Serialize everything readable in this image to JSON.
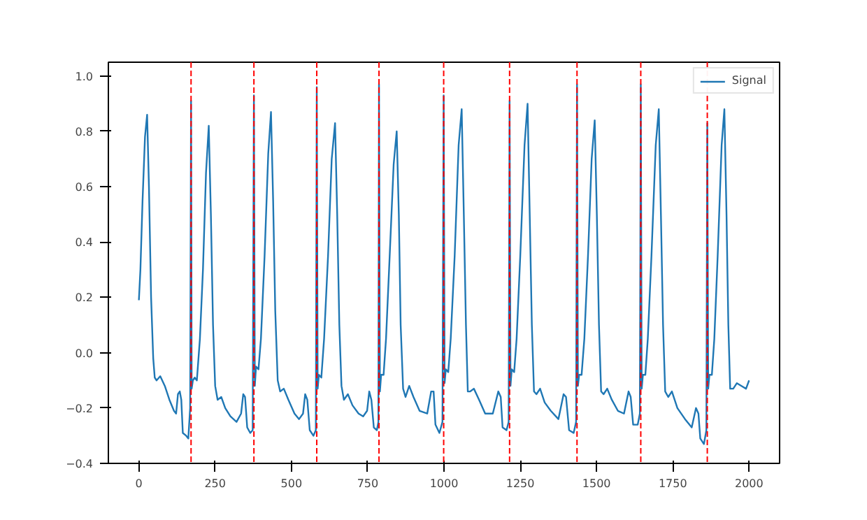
{
  "chart_data": {
    "type": "line",
    "xlim": [
      -100,
      2100
    ],
    "ylim": [
      -0.4,
      1.05
    ],
    "xticks": [
      0,
      250,
      500,
      750,
      1000,
      1250,
      1500,
      1750,
      2000
    ],
    "yticks": [
      {
        "value": -0.4,
        "label": "−0.4"
      },
      {
        "value": -0.2,
        "label": "−0.2"
      },
      {
        "value": 0,
        "label": "0.0"
      },
      {
        "value": 0.2,
        "label": "0.2"
      },
      {
        "value": 0.4,
        "label": "0.4"
      },
      {
        "value": 0.6,
        "label": "0.6"
      },
      {
        "value": 0.8,
        "label": "0.8"
      },
      {
        "value": 1.0,
        "label": "1.0"
      }
    ],
    "legend": "top right",
    "grid": false,
    "series": [
      {
        "name": "Signal",
        "color": "#1f77b4",
        "x": [
          0,
          5,
          12,
          20,
          27,
          33,
          40,
          47,
          52,
          58,
          70,
          85,
          100,
          115,
          122,
          128,
          134,
          139,
          144,
          155,
          162,
          168,
          171,
          173,
          177,
          183,
          190,
          200,
          210,
          220,
          229,
          236,
          243,
          250,
          258,
          270,
          283,
          300,
          320,
          335,
          342,
          348,
          355,
          365,
          373,
          377,
          380,
          384,
          392,
          400,
          412,
          424,
          433,
          440,
          447,
          455,
          463,
          475,
          490,
          510,
          525,
          538,
          545,
          552,
          560,
          572,
          580,
          583,
          586,
          590,
          598,
          607,
          620,
          632,
          643,
          650,
          657,
          664,
          672,
          685,
          700,
          720,
          735,
          748,
          755,
          762,
          770,
          780,
          785,
          787,
          790,
          794,
          802,
          810,
          822,
          835,
          845,
          852,
          858,
          866,
          874,
          886,
          900,
          920,
          945,
          958,
          966,
          972,
          985,
          995,
          999,
          1002,
          1006,
          1014,
          1022,
          1035,
          1048,
          1058,
          1065,
          1072,
          1078,
          1086,
          1098,
          1115,
          1135,
          1160,
          1178,
          1186,
          1192,
          1205,
          1212,
          1215,
          1218,
          1222,
          1230,
          1238,
          1250,
          1264,
          1274,
          1281,
          1288,
          1295,
          1303,
          1315,
          1330,
          1350,
          1375,
          1392,
          1400,
          1410,
          1425,
          1433,
          1436,
          1439,
          1443,
          1451,
          1460,
          1472,
          1484,
          1494,
          1501,
          1508,
          1515,
          1523,
          1535,
          1550,
          1570,
          1590,
          1605,
          1612,
          1620,
          1635,
          1642,
          1645,
          1648,
          1652,
          1660,
          1668,
          1680,
          1694,
          1704,
          1711,
          1718,
          1725,
          1735,
          1747,
          1765,
          1790,
          1812,
          1826,
          1834,
          1840,
          1852,
          1860,
          1863,
          1866,
          1870,
          1878,
          1886,
          1897,
          1910,
          1919,
          1926,
          1932,
          1938,
          1948,
          1960,
          1975,
          1990,
          2000
        ],
        "values": [
          0.19,
          0.3,
          0.55,
          0.78,
          0.86,
          0.6,
          0.2,
          -0.02,
          -0.09,
          -0.1,
          -0.085,
          -0.12,
          -0.17,
          -0.21,
          -0.22,
          -0.15,
          -0.14,
          -0.17,
          -0.29,
          -0.3,
          -0.31,
          -0.2,
          0.91,
          -0.13,
          -0.1,
          -0.09,
          -0.1,
          0.05,
          0.3,
          0.65,
          0.82,
          0.5,
          0.1,
          -0.12,
          -0.17,
          -0.16,
          -0.2,
          -0.23,
          -0.25,
          -0.22,
          -0.15,
          -0.16,
          -0.27,
          -0.29,
          -0.28,
          0.93,
          -0.12,
          -0.05,
          -0.06,
          0.05,
          0.35,
          0.72,
          0.87,
          0.55,
          0.15,
          -0.1,
          -0.14,
          -0.13,
          -0.17,
          -0.22,
          -0.24,
          -0.22,
          -0.15,
          -0.17,
          -0.28,
          -0.3,
          -0.28,
          0.96,
          -0.13,
          -0.08,
          -0.09,
          0.05,
          0.35,
          0.7,
          0.83,
          0.5,
          0.1,
          -0.12,
          -0.17,
          -0.15,
          -0.19,
          -0.22,
          -0.23,
          -0.21,
          -0.14,
          -0.17,
          -0.27,
          -0.28,
          -0.25,
          0.97,
          -0.14,
          -0.08,
          -0.08,
          0.05,
          0.35,
          0.68,
          0.8,
          0.5,
          0.1,
          -0.13,
          -0.16,
          -0.12,
          -0.16,
          -0.21,
          -0.22,
          -0.14,
          -0.14,
          -0.26,
          -0.29,
          -0.25,
          0.93,
          -0.11,
          -0.06,
          -0.07,
          0.05,
          0.35,
          0.75,
          0.88,
          0.5,
          0.1,
          -0.14,
          -0.14,
          -0.13,
          -0.17,
          -0.22,
          -0.22,
          -0.14,
          -0.16,
          -0.27,
          -0.28,
          -0.25,
          0.91,
          -0.12,
          -0.06,
          -0.07,
          0.05,
          0.35,
          0.75,
          0.9,
          0.5,
          0.1,
          -0.14,
          -0.15,
          -0.13,
          -0.18,
          -0.21,
          -0.24,
          -0.15,
          -0.16,
          -0.28,
          -0.29,
          -0.25,
          0.97,
          -0.12,
          -0.08,
          -0.08,
          0.05,
          0.35,
          0.7,
          0.84,
          0.5,
          0.1,
          -0.14,
          -0.15,
          -0.13,
          -0.17,
          -0.21,
          -0.22,
          -0.14,
          -0.16,
          -0.26,
          -0.26,
          -0.22,
          0.97,
          -0.13,
          -0.08,
          -0.08,
          0.05,
          0.35,
          0.75,
          0.88,
          0.5,
          0.1,
          -0.14,
          -0.16,
          -0.14,
          -0.2,
          -0.24,
          -0.27,
          -0.2,
          -0.22,
          -0.31,
          -0.33,
          -0.28,
          0.83,
          -0.13,
          -0.08,
          -0.08,
          0.05,
          0.35,
          0.75,
          0.88,
          0.5,
          0.1,
          -0.13,
          -0.13,
          -0.11,
          -0.12,
          -0.13,
          -0.1
        ]
      }
    ],
    "ref_lines": [
      {
        "axis": "x",
        "value": 171,
        "color": "#ff0000",
        "line_style": "dashed"
      },
      {
        "axis": "x",
        "value": 377,
        "color": "#ff0000",
        "line_style": "dashed"
      },
      {
        "axis": "x",
        "value": 583,
        "color": "#ff0000",
        "line_style": "dashed"
      },
      {
        "axis": "x",
        "value": 787,
        "color": "#ff0000",
        "line_style": "dashed"
      },
      {
        "axis": "x",
        "value": 999,
        "color": "#ff0000",
        "line_style": "dashed"
      },
      {
        "axis": "x",
        "value": 1215,
        "color": "#ff0000",
        "line_style": "dashed"
      },
      {
        "axis": "x",
        "value": 1436,
        "color": "#ff0000",
        "line_style": "dashed"
      },
      {
        "axis": "x",
        "value": 1645,
        "color": "#ff0000",
        "line_style": "dashed"
      },
      {
        "axis": "x",
        "value": 1863,
        "color": "#ff0000",
        "line_style": "dashed"
      }
    ]
  }
}
